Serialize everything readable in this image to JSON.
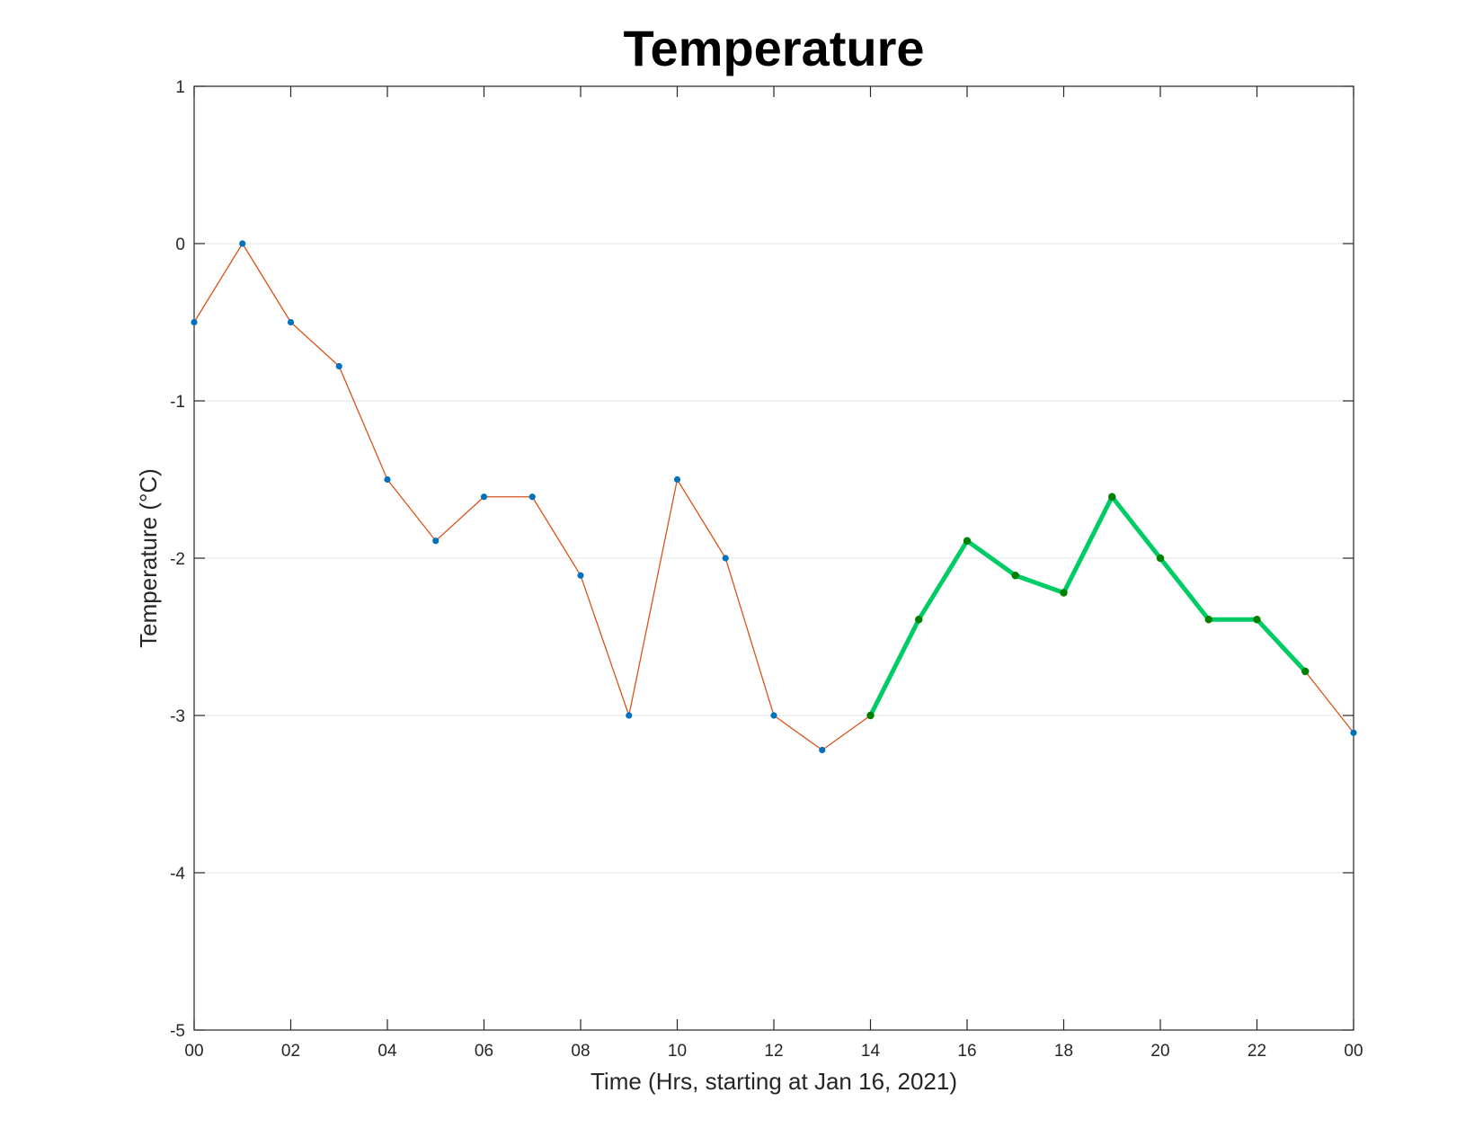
{
  "chart_data": {
    "type": "line",
    "title": "Temperature",
    "xlabel": "Time (Hrs, starting at Jan 16, 2021)",
    "ylabel": "Temperature (°C)",
    "x_ticks": [
      "00",
      "02",
      "04",
      "06",
      "08",
      "10",
      "12",
      "14",
      "16",
      "18",
      "20",
      "22",
      "00"
    ],
    "y_ticks": [
      "1",
      "0",
      "-1",
      "-2",
      "-3",
      "-4",
      "-5"
    ],
    "xlim": [
      0,
      24
    ],
    "ylim": [
      -5,
      1
    ],
    "grid": "horizontal",
    "hours": [
      0,
      1,
      2,
      3,
      4,
      5,
      6,
      7,
      8,
      9,
      10,
      11,
      12,
      13,
      14,
      15,
      16,
      17,
      18,
      19,
      20,
      21,
      22,
      23,
      24
    ],
    "series": [
      {
        "color": "#D95319",
        "marker_color": "#0072BD",
        "values": [
          -0.5,
          0.0,
          -0.5,
          -0.78,
          -1.5,
          -1.89,
          -1.61,
          -1.61,
          -2.11,
          -3.0,
          -1.5,
          -2.0,
          -3.0,
          -3.22,
          -3.0,
          -2.39,
          -1.89,
          -2.11,
          -2.22,
          -1.61,
          -2.0,
          -2.39,
          -2.39,
          -2.72,
          -3.11
        ]
      },
      {
        "color": "#00CC66",
        "marker_color": "#008000",
        "x_range": [
          14,
          23
        ],
        "values": [
          -3.0,
          -2.39,
          -1.89,
          -2.11,
          -2.22,
          -1.61,
          -2.0,
          -2.39,
          -2.39,
          -2.72
        ]
      }
    ]
  }
}
